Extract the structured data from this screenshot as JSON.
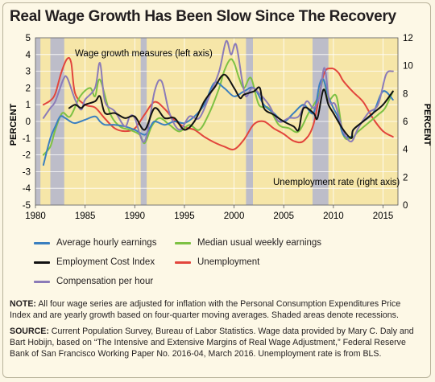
{
  "page": {
    "title": "Real Wage Growth Has Been Slow Since The Recovery",
    "note_label": "NOTE:",
    "note_text": " All four wage series are adjusted for inflation with the Personal Consumption Expenditures Price Index and are yearly growth based on four-quarter moving averages. Shaded areas denote recessions.",
    "source_label": "SOURCE:",
    "source_text": " Current Population Survey, Bureau of Labor Statistics. Wage data provided by Mary C. Daly and Bart Hobijn, based on “The Intensive and Extensive Margins of Real Wage Adjustment,” Federal Reserve Bank of San Francisco Working Paper No. 2016-04, March 2016. Unemployment rate is from BLS."
  },
  "colors": {
    "plot_bg": "#f6e6a8",
    "recession": "#bdbdc9",
    "avg_hourly": "#3a7fbf",
    "median_weekly": "#7dc143",
    "eci": "#111111",
    "unemployment": "#e2453c",
    "comp_per_hour": "#8b7bb8"
  },
  "chart_data": {
    "type": "line",
    "xlim": [
      1980,
      2016.5
    ],
    "ylim_left": [
      -5,
      5
    ],
    "ylim_right": [
      0,
      12
    ],
    "ylabel_left": "PERCENT",
    "ylabel_right": "PERCENT",
    "x_ticks": [
      1980,
      1985,
      1990,
      1995,
      2000,
      2005,
      2010,
      2015
    ],
    "y_ticks_left": [
      -5,
      -4,
      -3,
      -2,
      -1,
      0,
      1,
      2,
      3,
      4,
      5
    ],
    "y_ticks_right": [
      0,
      2,
      4,
      6,
      8,
      10,
      12
    ],
    "annotation_left": "Wage growth measures (left axis)",
    "annotation_right": "Unemployment rate (right axis)",
    "recessions": [
      [
        1980.0,
        1980.5
      ],
      [
        1981.5,
        1982.9
      ],
      [
        1990.6,
        1991.2
      ],
      [
        2001.2,
        2001.9
      ],
      [
        2007.9,
        2009.5
      ]
    ],
    "series": [
      {
        "name": "Average hourly earnings",
        "color_key": "avg_hourly",
        "axis": "left",
        "x": [
          1980.8,
          1981.5,
          1982,
          1982.5,
          1983,
          1983.5,
          1984,
          1985,
          1986,
          1986.5,
          1987,
          1988,
          1989,
          1990,
          1991,
          1991.5,
          1992,
          1993,
          1994,
          1995,
          1996,
          1997,
          1998,
          1999,
          2000,
          2001,
          2002,
          2003,
          2004,
          2005,
          2006,
          2007,
          2008,
          2008.6,
          2009,
          2009.5,
          2010,
          2010.5,
          2011,
          2011.8,
          2012,
          2013,
          2014,
          2015,
          2016
        ],
        "y": [
          -2.6,
          -1.0,
          -0.3,
          0.3,
          0.2,
          0.0,
          -0.1,
          0.1,
          0.3,
          0.0,
          -0.2,
          -0.2,
          -0.3,
          -0.5,
          -0.8,
          -0.4,
          0.0,
          -0.2,
          0.0,
          -0.1,
          0.3,
          1.0,
          2.3,
          2.0,
          1.5,
          1.8,
          2.0,
          1.0,
          0.5,
          0.0,
          0.5,
          1.0,
          0.5,
          2.2,
          2.5,
          1.5,
          0.8,
          0.2,
          -0.8,
          -0.9,
          -0.5,
          0.0,
          0.5,
          1.8,
          1.3
        ]
      },
      {
        "name": "Median usual weekly earnings",
        "color_key": "median_weekly",
        "axis": "left",
        "x": [
          1980.8,
          1981.5,
          1982,
          1982.7,
          1983.5,
          1984.5,
          1985.5,
          1986,
          1986.5,
          1987.5,
          1988.5,
          1989.5,
          1990.5,
          1991,
          1991.7,
          1992.5,
          1993.5,
          1994.5,
          1995.5,
          1996.5,
          1997.5,
          1998.5,
          1999,
          1999.6,
          2000,
          2000.5,
          2001,
          2001.7,
          2002.5,
          2003.5,
          2004.5,
          2005.5,
          2006.5,
          2007.5,
          2008.5,
          2009,
          2009.5,
          2010.3,
          2011,
          2011.8,
          2012.5,
          2013.5,
          2014.5,
          2015.2,
          2016
        ],
        "y": [
          -2.0,
          -1.5,
          -0.5,
          0.5,
          0.3,
          1.5,
          2.0,
          1.5,
          2.5,
          0.5,
          -0.3,
          -0.5,
          -0.8,
          -1.3,
          -0.3,
          0.2,
          -0.2,
          -0.6,
          -0.2,
          -0.5,
          0.5,
          2.0,
          3.0,
          3.7,
          3.5,
          2.6,
          2.0,
          2.6,
          1.0,
          0.8,
          -0.2,
          -0.4,
          -0.6,
          0.5,
          1.5,
          2.5,
          1.3,
          1.5,
          -0.8,
          -1.0,
          -0.6,
          -0.1,
          0.4,
          0.8,
          1.8
        ]
      },
      {
        "name": "Employment Cost Index",
        "color_key": "eci",
        "axis": "left",
        "x": [
          1983.4,
          1984,
          1984.6,
          1985,
          1986,
          1986.5,
          1987,
          1988,
          1989,
          1990,
          1991,
          1992,
          1993,
          1994,
          1995,
          1996,
          1997,
          1998,
          1999,
          2000,
          2000.6,
          2001,
          2002,
          2002.6,
          2003,
          2004,
          2005,
          2006,
          2006.5,
          2007,
          2008,
          2008.4,
          2009,
          2009.5,
          2010,
          2011,
          2011.8,
          2012,
          2013,
          2014,
          2015,
          2016
        ],
        "y": [
          0.8,
          1.0,
          0.8,
          1.0,
          1.2,
          1.5,
          0.5,
          0.5,
          0.2,
          0.3,
          -0.5,
          0.8,
          0.2,
          0.2,
          -0.5,
          0.0,
          1.2,
          2.0,
          2.8,
          2.0,
          1.4,
          1.6,
          1.8,
          2.0,
          0.8,
          0.4,
          0.0,
          -0.3,
          -0.5,
          0.8,
          0.5,
          0.2,
          1.9,
          1.0,
          0.5,
          -0.5,
          -1.0,
          -0.5,
          0.0,
          0.5,
          1.0,
          1.8
        ]
      },
      {
        "name": "Unemployment",
        "color_key": "unemployment",
        "axis": "right",
        "x": [
          1980.8,
          1981.5,
          1982,
          1982.6,
          1983.2,
          1983.6,
          1984,
          1985,
          1986,
          1987,
          1988,
          1989,
          1990,
          1991,
          1992,
          1993,
          1994,
          1995,
          1996,
          1997,
          1998,
          1999,
          2000,
          2001,
          2002,
          2003,
          2004,
          2005,
          2006,
          2007,
          2008,
          2009,
          2009.8,
          2010.5,
          2011,
          2012,
          2013,
          2014,
          2015,
          2016
        ],
        "y": [
          7.2,
          7.5,
          8.0,
          9.5,
          10.5,
          10.2,
          8.0,
          7.2,
          7.0,
          6.2,
          5.5,
          5.3,
          5.5,
          6.5,
          7.4,
          6.9,
          6.1,
          5.6,
          5.4,
          4.9,
          4.5,
          4.2,
          4.0,
          4.7,
          5.8,
          6.0,
          5.5,
          5.1,
          4.6,
          4.6,
          5.8,
          9.3,
          9.8,
          9.5,
          8.9,
          8.1,
          7.4,
          6.2,
          5.3,
          4.9
        ]
      },
      {
        "name": "Compensation per hour",
        "color_key": "comp_per_hour",
        "axis": "left",
        "x": [
          1980.8,
          1981.5,
          1982,
          1982.8,
          1983.2,
          1984,
          1984.6,
          1985,
          1986,
          1986.5,
          1987,
          1988,
          1989,
          1989.5,
          1990,
          1991,
          1992,
          1992.7,
          1993.5,
          1994.5,
          1995.5,
          1996.5,
          1997.5,
          1998.5,
          1999.2,
          1999.7,
          2000.2,
          2000.8,
          2001.2,
          2001.8,
          2002.5,
          2003.5,
          2004.5,
          2005.5,
          2006.5,
          2007.3,
          2008,
          2008.6,
          2009.1,
          2009.6,
          2010.2,
          2011,
          2011.8,
          2012.5,
          2013.5,
          2014.5,
          2015.3,
          2016
        ],
        "y": [
          0.2,
          0.8,
          1.2,
          2.5,
          2.6,
          1.3,
          0.7,
          1.3,
          2.0,
          3.5,
          1.2,
          0.6,
          -0.3,
          0.3,
          0.2,
          -1.2,
          1.8,
          2.4,
          0.5,
          -0.5,
          0.3,
          0.2,
          1.5,
          3.0,
          4.8,
          4.0,
          4.6,
          2.5,
          1.5,
          2.0,
          1.7,
          1.0,
          0.0,
          0.2,
          0.3,
          1.2,
          0.8,
          1.5,
          3.2,
          1.2,
          1.0,
          -0.6,
          -1.2,
          -0.4,
          0.5,
          1.0,
          2.8,
          3.0
        ]
      }
    ]
  }
}
